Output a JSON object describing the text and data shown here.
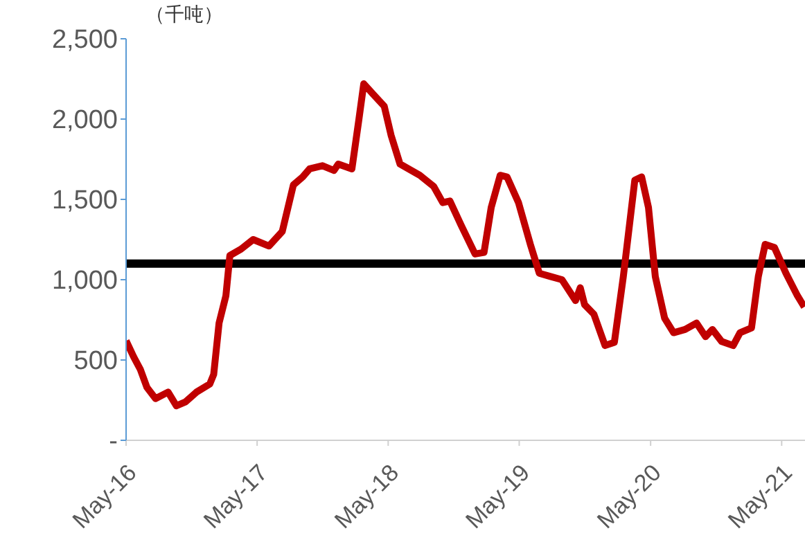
{
  "chart_data": {
    "type": "line",
    "ylabel": "（千吨）",
    "x": [
      "2016-05-01",
      "2016-05-22",
      "2016-06-10",
      "2016-06-28",
      "2016-07-22",
      "2016-08-26",
      "2016-09-18",
      "2016-10-14",
      "2016-11-13",
      "2016-12-20",
      "2016-12-31",
      "2017-01-15",
      "2017-02-03",
      "2017-02-14",
      "2017-03-17",
      "2017-04-20",
      "2017-06-03",
      "2017-07-10",
      "2017-08-10",
      "2017-09-05",
      "2017-09-24",
      "2017-10-30",
      "2017-12-01",
      "2017-12-13",
      "2018-01-20",
      "2018-02-08",
      "2018-02-22",
      "2018-03-18",
      "2018-04-20",
      "2018-05-09",
      "2018-06-03",
      "2018-07-28",
      "2018-09-05",
      "2018-09-30",
      "2018-10-20",
      "2018-11-20",
      "2018-12-29",
      "2019-01-23",
      "2019-02-12",
      "2019-03-09",
      "2019-03-28",
      "2019-04-29",
      "2019-06-01",
      "2019-06-26",
      "2019-07-27",
      "2019-08-28",
      "2019-10-05",
      "2019-10-18",
      "2019-10-30",
      "2019-11-25",
      "2019-12-26",
      "2020-01-21",
      "2020-02-15",
      "2020-03-18",
      "2020-04-06",
      "2020-04-25",
      "2020-05-14",
      "2020-06-09",
      "2020-07-04",
      "2020-08-05",
      "2020-09-06",
      "2020-10-01",
      "2020-10-20",
      "2020-11-15",
      "2020-12-17",
      "2021-01-05",
      "2021-02-06",
      "2021-02-25",
      "2021-03-16",
      "2021-04-11",
      "2021-05-13",
      "2021-06-14",
      "2021-07-03"
    ],
    "series": [
      {
        "color": "#c00000",
        "values": [
          620,
          520,
          440,
          330,
          260,
          300,
          215,
          240,
          300,
          350,
          410,
          730,
          900,
          1150,
          1190,
          1250,
          1210,
          1300,
          1590,
          1640,
          1690,
          1710,
          1680,
          1720,
          1690,
          1990,
          2220,
          2160,
          2080,
          1900,
          1720,
          1650,
          1580,
          1480,
          1490,
          1340,
          1160,
          1170,
          1450,
          1650,
          1640,
          1480,
          1220,
          1040,
          1020,
          1000,
          870,
          950,
          845,
          785,
          590,
          610,
          1020,
          1620,
          1640,
          1450,
          1020,
          760,
          670,
          690,
          730,
          645,
          690,
          615,
          590,
          670,
          700,
          1020,
          1220,
          1200,
          1040,
          900,
          830
        ]
      }
    ],
    "xlim": [
      "2016-05-01",
      "2021-07-05"
    ],
    "xticks": [
      {
        "value": "2016-05-01",
        "label": "May-16"
      },
      {
        "value": "2017-05-01",
        "label": "May-17"
      },
      {
        "value": "2018-05-01",
        "label": "May-18"
      },
      {
        "value": "2019-05-01",
        "label": "May-19"
      },
      {
        "value": "2020-05-01",
        "label": "May-20"
      },
      {
        "value": "2021-05-01",
        "label": "May-21"
      }
    ],
    "ylim": [
      0,
      2500
    ],
    "yticks": [
      {
        "value": 0,
        "label": "-"
      },
      {
        "value": 500,
        "label": "500"
      },
      {
        "value": 1000,
        "label": "1,000"
      },
      {
        "value": 1500,
        "label": "1,500"
      },
      {
        "value": 2000,
        "label": "2,000"
      },
      {
        "value": 2500,
        "label": "2,500"
      }
    ],
    "ref_lines": [
      {
        "axis": "y",
        "value": 1100,
        "color": "#000000"
      }
    ],
    "grid": false,
    "legend": false,
    "marker": "none",
    "line_style": "solid"
  }
}
